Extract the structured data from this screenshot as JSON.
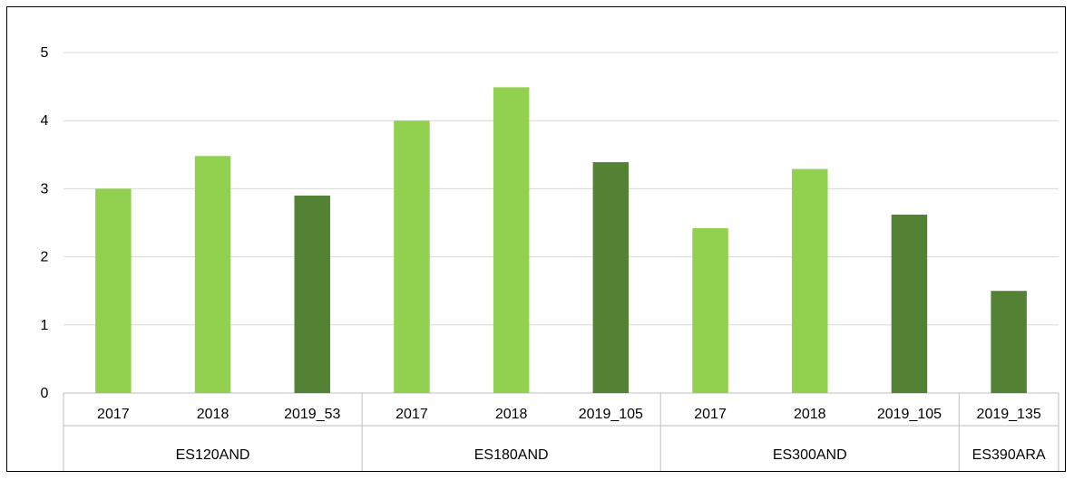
{
  "chart_data": {
    "type": "bar",
    "ylim": [
      0,
      5
    ],
    "yticks": [
      0,
      1,
      2,
      3,
      4,
      5
    ],
    "grid": true,
    "groups": [
      {
        "name": "ES120AND",
        "bars": [
          {
            "label": "2017",
            "value": 3.0,
            "shade": "light"
          },
          {
            "label": "2018",
            "value": 3.48,
            "shade": "light"
          },
          {
            "label": "2019_53",
            "value": 2.9,
            "shade": "dark"
          }
        ]
      },
      {
        "name": "ES180AND",
        "bars": [
          {
            "label": "2017",
            "value": 4.0,
            "shade": "light"
          },
          {
            "label": "2018",
            "value": 4.49,
            "shade": "light"
          },
          {
            "label": "2019_105",
            "value": 3.39,
            "shade": "dark"
          }
        ]
      },
      {
        "name": "ES300AND",
        "bars": [
          {
            "label": "2017",
            "value": 2.42,
            "shade": "light"
          },
          {
            "label": "2018",
            "value": 3.29,
            "shade": "light"
          },
          {
            "label": "2019_105",
            "value": 2.62,
            "shade": "dark"
          }
        ]
      },
      {
        "name": "ES390ARA",
        "bars": [
          {
            "label": "2019_135",
            "value": 1.5,
            "shade": "dark"
          }
        ]
      }
    ],
    "colors": {
      "light": "#92D050",
      "dark": "#548235"
    }
  }
}
